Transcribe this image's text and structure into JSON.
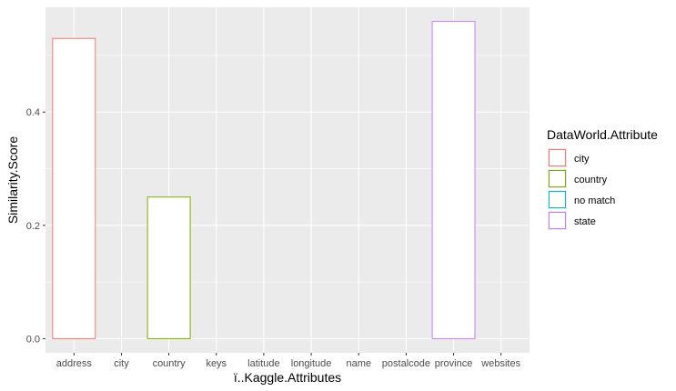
{
  "chart_data": {
    "type": "bar",
    "xlabel": "ï..Kaggle.Attributes",
    "ylabel": "Similarity.Score",
    "ylim": [
      -0.025,
      0.585
    ],
    "yticks": [
      0.0,
      0.2,
      0.4
    ],
    "ytick_labels": [
      "0.0",
      "0.2",
      "0.4"
    ],
    "categories": [
      "address",
      "city",
      "country",
      "keys",
      "latitude",
      "longitude",
      "name",
      "postalcode",
      "province",
      "websites"
    ],
    "bars": [
      {
        "category": "address",
        "value": 0.53,
        "group": "city"
      },
      {
        "category": "city",
        "value": 0.0,
        "group": "no match"
      },
      {
        "category": "country",
        "value": 0.25,
        "group": "country"
      },
      {
        "category": "keys",
        "value": 0.0,
        "group": "no match"
      },
      {
        "category": "latitude",
        "value": 0.0,
        "group": "no match"
      },
      {
        "category": "longitude",
        "value": 0.0,
        "group": "no match"
      },
      {
        "category": "name",
        "value": 0.0,
        "group": "no match"
      },
      {
        "category": "postalcode",
        "value": 0.0,
        "group": "no match"
      },
      {
        "category": "province",
        "value": 0.56,
        "group": "state"
      },
      {
        "category": "websites",
        "value": 0.0,
        "group": "no match"
      }
    ],
    "legend": {
      "title": "DataWorld.Attribute",
      "placement": "right",
      "items": [
        {
          "label": "city",
          "color": "#F8766D"
        },
        {
          "label": "country",
          "color": "#7CAE00"
        },
        {
          "label": "no match",
          "color": "#00BFC4"
        },
        {
          "label": "state",
          "color": "#C77CFF"
        }
      ]
    },
    "grid": true,
    "panel_background": "#EBEBEB",
    "bar_fill": "#FFFFFF"
  }
}
